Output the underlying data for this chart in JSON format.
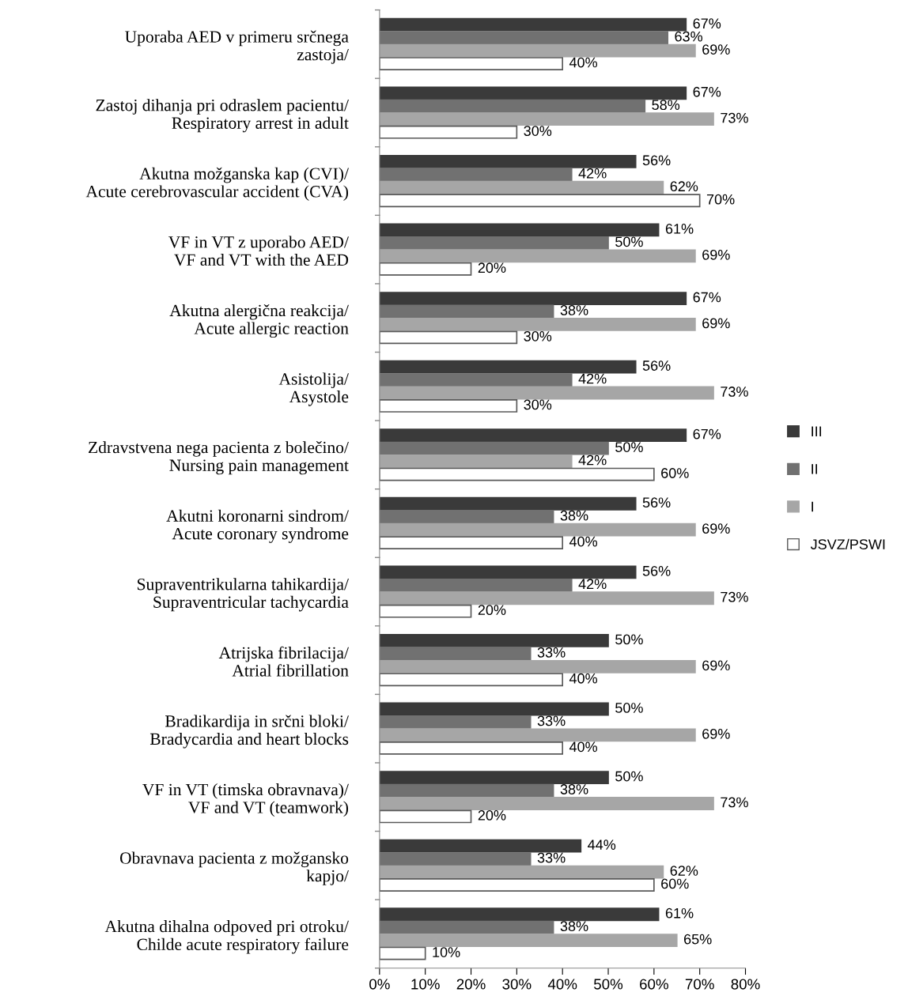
{
  "chart_data": {
    "type": "bar",
    "orientation": "horizontal",
    "categories": [
      "Uporaba AED v primeru srčnega\nzastoja/",
      "Zastoj dihanja pri odraslem pacientu/\nRespiratory arrest in adult",
      "Akutna možganska kap (CVI)/\nAcute cerebrovascular accident (CVA)",
      "VF in VT z uporabo AED/\nVF and VT with the AED",
      "Akutna alergična reakcija/\nAcute allergic reaction",
      "Asistolija/\nAsystole",
      "Zdravstvena nega pacienta z bolečino/\nNursing pain management",
      "Akutni koronarni sindrom/\nAcute coronary syndrome",
      "Supraventrikularna tahikardija/\nSupraventricular tachycardia",
      "Atrijska fibrilacija/\nAtrial fibrillation",
      "Bradikardija in srčni bloki/\nBradycardia and heart blocks",
      "VF in VT (timska obravnava)/\nVF and VT (teamwork)",
      "Obravnava pacienta z možgansko\nkapjo/",
      "Akutna dihalna odpoved pri otroku/\nChilde acute respiratory failure"
    ],
    "series": [
      {
        "name": "III",
        "color": "#3a3a3a",
        "values": [
          67,
          67,
          56,
          61,
          67,
          56,
          67,
          56,
          56,
          50,
          50,
          50,
          44,
          61
        ],
        "value_labels": [
          "67%",
          "67%",
          "56%",
          "61%",
          "67%",
          "56%",
          "67%",
          "56%",
          "56%",
          "50%",
          "50%",
          "50%",
          "44%",
          "61%"
        ]
      },
      {
        "name": "II",
        "color": "#717171",
        "values": [
          63,
          58,
          42,
          50,
          38,
          42,
          50,
          38,
          42,
          33,
          33,
          38,
          33,
          38
        ],
        "value_labels": [
          "63%",
          "58%",
          "42%",
          "50%",
          "38%",
          "42%",
          "50%",
          "38%",
          "42%",
          "33%",
          "33%",
          "38%",
          "33%",
          "38%"
        ]
      },
      {
        "name": "I",
        "color": "#a6a6a6",
        "values": [
          69,
          73,
          62,
          69,
          69,
          73,
          42,
          69,
          73,
          69,
          69,
          73,
          62,
          65
        ],
        "value_labels": [
          "69%",
          "73%",
          "62%",
          "69%",
          "69%",
          "73%",
          "42%",
          "69%",
          "73%",
          "69%",
          "69%",
          "73%",
          "62%",
          "65%"
        ]
      },
      {
        "name": "JSVZ/PSWI",
        "color": "#ffffff",
        "values": [
          40,
          30,
          70,
          20,
          30,
          30,
          60,
          40,
          20,
          40,
          40,
          20,
          60,
          10
        ],
        "value_labels": [
          "40%",
          "30%",
          "70%",
          "20%",
          "30%",
          "30%",
          "60%",
          "40%",
          "20%",
          "40%",
          "40%",
          "20%",
          "60%",
          "10%"
        ]
      }
    ],
    "xlim": [
      0,
      80
    ],
    "xticks": [
      {
        "value": 0,
        "label": "0%"
      },
      {
        "value": 10,
        "label": "10%"
      },
      {
        "value": 20,
        "label": "20%"
      },
      {
        "value": 30,
        "label": "30%"
      },
      {
        "value": 40,
        "label": "40%"
      },
      {
        "value": 50,
        "label": "50%"
      },
      {
        "value": 60,
        "label": "60%"
      },
      {
        "value": 70,
        "label": "70%"
      },
      {
        "value": 80,
        "label": "80%"
      }
    ],
    "grid": false,
    "legend": "right"
  }
}
